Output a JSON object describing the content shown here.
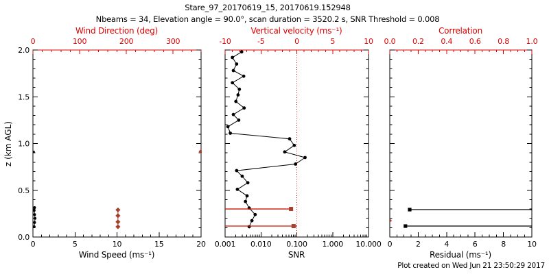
{
  "colors": {
    "axis_red": "#dd0000",
    "bar_red": "#cc1100",
    "marker_red": "#a5402c",
    "black": "#000000",
    "background": "#ffffff"
  },
  "chart_data": {
    "type": "scatter",
    "title": "Stare_97_20170619_15, 20170619.152948",
    "subtitle": "Nbeams = 34, Elevation angle = 90.0°, scan duration = 3520.2 s, SNR Threshold = 0.008",
    "footer": "Plot created on Wed Jun 21 23:50:29 2017",
    "ylabel": "z (km AGL)",
    "yaxis": {
      "lim": [
        0,
        2
      ],
      "ticks": [
        0.0,
        0.5,
        1.0,
        1.5,
        2.0
      ],
      "tick_labels": [
        "0.0",
        "0.5",
        "1.0",
        "1.5",
        "2.0"
      ],
      "minor_step": 0.1
    },
    "panels": [
      {
        "name": "wind",
        "bottom_axis": {
          "label": "Wind Speed (ms⁻¹)",
          "scale": "linear",
          "lim": [
            0,
            20
          ],
          "ticks": [
            0,
            5,
            10,
            15,
            20
          ],
          "tick_labels": [
            "0",
            "5",
            "10",
            "15",
            "20"
          ],
          "minor_step": 1
        },
        "top_axis": {
          "label": "Wind Direction (deg)",
          "scale": "linear",
          "lim": [
            0,
            360
          ],
          "ticks": [
            0,
            100,
            200,
            300
          ],
          "tick_labels": [
            "0",
            "100",
            "200",
            "300"
          ],
          "minor_step": 20
        },
        "series": [
          {
            "name": "wind-speed-profile",
            "axis": "bottom",
            "color": "#000000",
            "marker": "dot",
            "marker_size": 2,
            "line": true,
            "points": [
              [
                0.2,
                0.315
              ],
              [
                0.15,
                0.285
              ],
              [
                0.2,
                0.24
              ],
              [
                0.25,
                0.2
              ],
              [
                0.2,
                0.155
              ],
              [
                0.15,
                0.11
              ]
            ]
          },
          {
            "name": "wind-speed-single",
            "axis": "bottom",
            "color": "#000000",
            "marker": "dot",
            "marker_size": 1.6,
            "line": false,
            "points": [
              [
                0.1,
                0.91
              ]
            ]
          },
          {
            "name": "wind-direction",
            "axis": "top",
            "color": "#a5402c",
            "marker": "diamond",
            "marker_size": 3.6,
            "line": true,
            "line_color": "#b03020",
            "points": [
              [
                182,
                0.29
              ],
              [
                182,
                0.228
              ],
              [
                182,
                0.162
              ],
              [
                182,
                0.11
              ]
            ]
          },
          {
            "name": "wind-direction-edge",
            "axis": "top",
            "color": "#a5402c",
            "marker": "diamond",
            "marker_size": 3.2,
            "line": false,
            "points": [
              [
                359.5,
                0.915
              ]
            ]
          }
        ]
      },
      {
        "name": "snr",
        "bottom_axis": {
          "label": "SNR",
          "scale": "log",
          "lim": [
            0.001,
            10
          ],
          "ticks": [
            0.001,
            0.01,
            0.1,
            1,
            10
          ],
          "tick_labels": [
            "0.001",
            "0.010",
            "0.100",
            "1.000",
            "10.000"
          ]
        },
        "top_axis": {
          "label": "Vertical velocity (ms⁻¹)",
          "scale": "linear",
          "lim": [
            -10,
            10
          ],
          "ticks": [
            -10,
            -5,
            0,
            5,
            10
          ],
          "tick_labels": [
            "-10",
            "-5",
            "0",
            "5",
            "10"
          ],
          "minor_step": 1,
          "refline": 0
        },
        "series": [
          {
            "name": "snr-profile",
            "axis": "bottom",
            "color": "#000000",
            "marker": "dot",
            "marker_size": 2.4,
            "line": true,
            "points": [
              [
                0.0029,
                1.98
              ],
              [
                0.0016,
                1.92
              ],
              [
                0.0021,
                1.85
              ],
              [
                0.0017,
                1.78
              ],
              [
                0.0033,
                1.72
              ],
              [
                0.0016,
                1.65
              ],
              [
                0.0025,
                1.58
              ],
              [
                0.0023,
                1.52
              ],
              [
                0.002,
                1.45
              ],
              [
                0.0034,
                1.38
              ],
              [
                0.0017,
                1.31
              ],
              [
                0.0024,
                1.25
              ],
              [
                0.0012,
                1.18
              ],
              [
                0.0014,
                1.11
              ],
              [
                0.063,
                1.05
              ],
              [
                0.085,
                0.98
              ],
              [
                0.046,
                0.91
              ],
              [
                0.17,
                0.85
              ],
              [
                0.092,
                0.78
              ],
              [
                0.0021,
                0.71
              ],
              [
                0.003,
                0.65
              ],
              [
                0.0043,
                0.58
              ],
              [
                0.0022,
                0.51
              ],
              [
                0.0041,
                0.44
              ],
              [
                0.0037,
                0.38
              ],
              [
                0.0047,
                0.31
              ],
              [
                0.0069,
                0.24
              ],
              [
                0.0056,
                0.175
              ],
              [
                0.0047,
                0.11
              ]
            ]
          },
          {
            "name": "vertical-velocity-errorbars",
            "axis": "top",
            "type": "errbar",
            "color": "#cc1100",
            "marker": "square",
            "marker_color": "#a5402c",
            "marker_size": 3,
            "points": [
              {
                "x": -0.8,
                "z": 0.3,
                "lo": -10,
                "hi": -0.55
              },
              {
                "x": -0.45,
                "z": 0.117,
                "lo": -10,
                "hi": 0.05
              }
            ]
          }
        ]
      },
      {
        "name": "residual",
        "bottom_axis": {
          "label": "Residual (ms⁻¹)",
          "scale": "linear",
          "lim": [
            0,
            10
          ],
          "ticks": [
            0,
            2,
            4,
            6,
            8,
            10
          ],
          "tick_labels": [
            "0",
            "2",
            "4",
            "6",
            "8",
            "10"
          ],
          "minor_step": 0.5
        },
        "top_axis": {
          "label": "Correlation",
          "scale": "linear",
          "lim": [
            0,
            1
          ],
          "ticks": [
            0.0,
            0.2,
            0.4,
            0.6,
            0.8,
            1.0
          ],
          "tick_labels": [
            "0.0",
            "0.2",
            "0.4",
            "0.6",
            "0.8",
            "1.0"
          ],
          "minor_step": 0.05
        },
        "series": [
          {
            "name": "residual-errorbars",
            "axis": "bottom",
            "type": "errbar",
            "color": "#000000",
            "marker": "square",
            "marker_color": "#000000",
            "marker_size": 2.6,
            "points": [
              {
                "x": 1.4,
                "z": 0.293,
                "lo": 1.4,
                "hi": 10
              },
              {
                "x": 1.1,
                "z": 0.117,
                "lo": 1.1,
                "hi": 10
              }
            ]
          },
          {
            "name": "correlation-point",
            "axis": "top",
            "color": "#a5402c",
            "marker": "dot",
            "marker_size": 1.6,
            "line": false,
            "points": [
              [
                0.005,
                0.176
              ]
            ]
          }
        ]
      }
    ]
  }
}
